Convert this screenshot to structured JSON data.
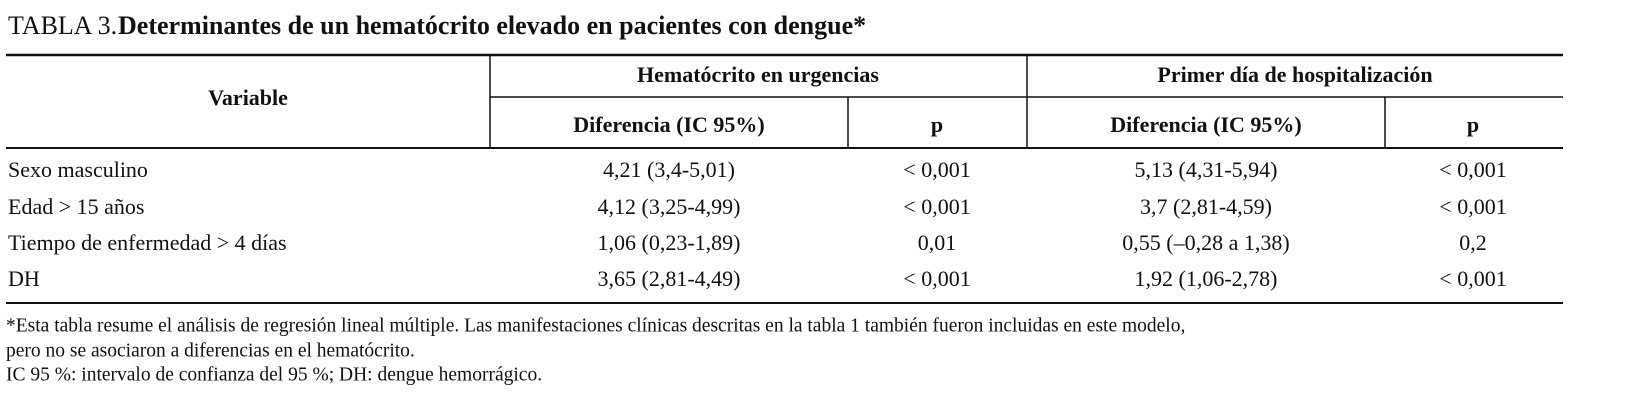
{
  "title": {
    "label": "TABLA 3.",
    "text": "Determinantes de un hematócrito elevado en pacientes con dengue*"
  },
  "table": {
    "header": {
      "variable": "Variable",
      "groups": [
        "Hematócrito en urgencias",
        "Primer día de hospitalización"
      ],
      "subheaders": [
        "Diferencia (IC 95%)",
        "p",
        "Diferencia (IC 95%)",
        "p"
      ]
    },
    "rows": [
      [
        "Sexo masculino",
        "4,21 (3,4-5,01)",
        "< 0,001",
        "5,13 (4,31-5,94)",
        "< 0,001"
      ],
      [
        "Edad > 15 años",
        "4,12 (3,25-4,99)",
        "< 0,001",
        "3,7 (2,81-4,59)",
        "< 0,001"
      ],
      [
        "Tiempo de enfermedad > 4 días",
        "1,06 (0,23-1,89)",
        "0,01",
        "0,55 (–0,28 a 1,38)",
        "0,2"
      ],
      [
        "DH",
        "3,65 (2,81-4,49)",
        "< 0,001",
        "1,92 (1,06-2,78)",
        "< 0,001"
      ]
    ]
  },
  "footnotes": [
    "*Esta tabla resume el análisis de regresión lineal múltiple. Las manifestaciones clínicas descritas en la tabla 1 también fueron incluidas en este modelo,",
    "pero no se asociaron a diferencias en el hematócrito.",
    "IC 95 %: intervalo de confianza del 95 %; DH: dengue hemorrágico."
  ]
}
